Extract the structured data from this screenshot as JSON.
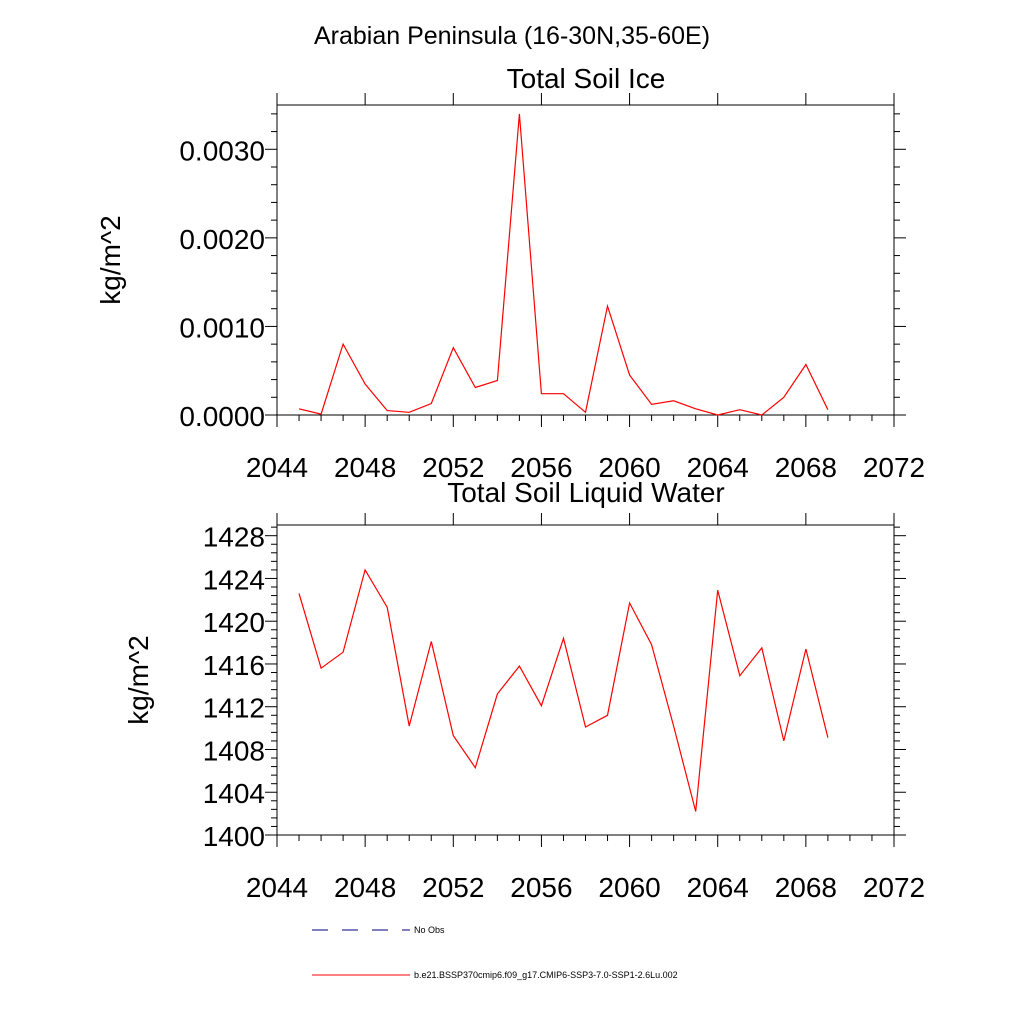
{
  "page_title": "Arabian Peninsula (16-30N,35-60E)",
  "colors": {
    "series": "#ff0000",
    "obs": "#000080",
    "axis": "#000000"
  },
  "chart_data": [
    {
      "type": "line",
      "title": "Total Soil Ice",
      "ylabel": "kg/m^2",
      "xlabel": "",
      "xlim": [
        2044,
        2072
      ],
      "ylim": [
        0,
        0.0035
      ],
      "xticks": [
        2044,
        2048,
        2052,
        2056,
        2060,
        2064,
        2068,
        2072
      ],
      "xtick_labels": [
        "2044",
        "2048",
        "2052",
        "2056",
        "2060",
        "2064",
        "2068",
        "2072"
      ],
      "yticks": [
        0,
        0.001,
        0.002,
        0.003
      ],
      "ytick_labels": [
        "0.0000",
        "0.0010",
        "0.0020",
        "0.0030"
      ],
      "series": [
        {
          "x": [
            2045,
            2046,
            2047,
            2048,
            2049,
            2050,
            2051,
            2052,
            2053,
            2054,
            2055,
            2056,
            2057,
            2058,
            2059,
            2060,
            2061,
            2062,
            2063,
            2064,
            2065,
            2066,
            2067,
            2068,
            2069
          ],
          "values": [
            7e-05,
            1e-05,
            0.0008,
            0.00035,
            5e-05,
            3e-05,
            0.00013,
            0.00076,
            0.00031,
            0.00039,
            0.0034,
            0.00024,
            0.00024,
            3e-05,
            0.00123,
            0.00045,
            0.00012,
            0.00016,
            7e-05,
            0.0,
            6e-05,
            0.0,
            0.0002,
            0.00057,
            6e-05
          ]
        }
      ]
    },
    {
      "type": "line",
      "title": "Total Soil Liquid Water",
      "ylabel": "kg/m^2",
      "xlabel": "",
      "xlim": [
        2044,
        2072
      ],
      "ylim": [
        1400,
        1429
      ],
      "xticks": [
        2044,
        2048,
        2052,
        2056,
        2060,
        2064,
        2068,
        2072
      ],
      "xtick_labels": [
        "2044",
        "2048",
        "2052",
        "2056",
        "2060",
        "2064",
        "2068",
        "2072"
      ],
      "yticks": [
        1400,
        1404,
        1408,
        1412,
        1416,
        1420,
        1424,
        1428
      ],
      "ytick_labels": [
        "1400",
        "1404",
        "1408",
        "1412",
        "1416",
        "1420",
        "1424",
        "1428"
      ],
      "series": [
        {
          "x": [
            2045,
            2046,
            2047,
            2048,
            2049,
            2050,
            2051,
            2052,
            2053,
            2054,
            2055,
            2056,
            2057,
            2058,
            2059,
            2060,
            2061,
            2062,
            2063,
            2064,
            2065,
            2066,
            2067,
            2068,
            2069
          ],
          "values": [
            1422.6,
            1415.6,
            1417.1,
            1424.8,
            1421.3,
            1410.2,
            1418.1,
            1409.3,
            1406.3,
            1413.2,
            1415.8,
            1412.1,
            1418.4,
            1410.1,
            1411.2,
            1421.7,
            1417.8,
            1410.2,
            1402.2,
            1422.9,
            1414.9,
            1417.5,
            1408.8,
            1417.4,
            1409.1
          ]
        }
      ]
    }
  ],
  "legend": {
    "placement": "bottom-left",
    "items": [
      {
        "label": "No Obs",
        "style": "dashed"
      },
      {
        "label": "b.e21.BSSP370cmip6.f09_g17.CMIP6-SSP3-7.0-SSP1-2.6Lu.002",
        "style": "solid"
      }
    ]
  }
}
